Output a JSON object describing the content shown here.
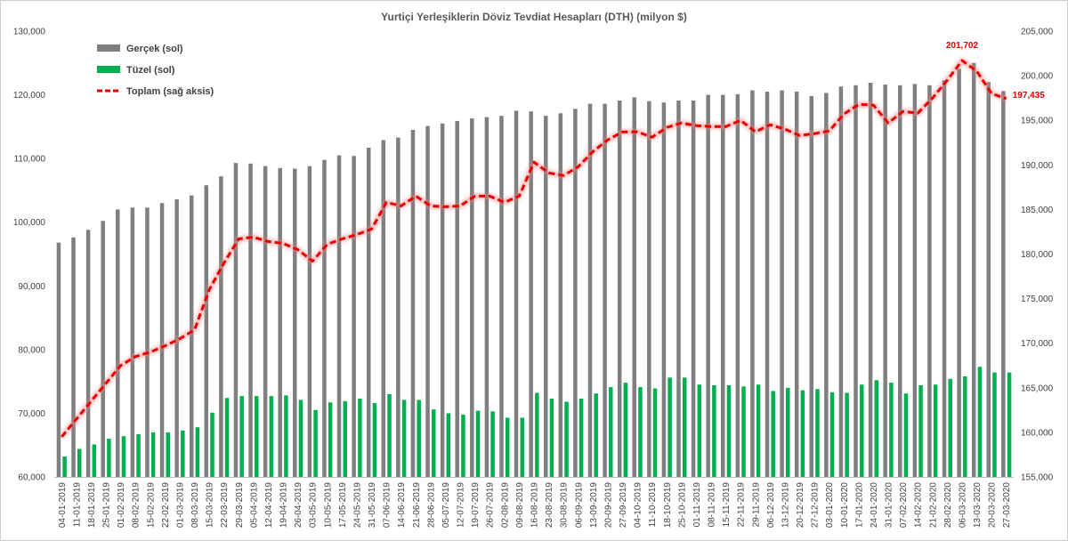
{
  "chart_data": {
    "type": "bar",
    "title": "Yurtiçi Yerleşiklerin Döviz Tevdiat Hesapları (DTH) (milyon $)",
    "left_axis": {
      "min": 60000,
      "max": 130000,
      "step": 10000,
      "ticks": [
        "60,000",
        "70,000",
        "80,000",
        "90,000",
        "100,000",
        "110,000",
        "120,000",
        "130,000"
      ]
    },
    "right_axis": {
      "min": 155000,
      "max": 205000,
      "step": 5000,
      "ticks": [
        "155,000",
        "160,000",
        "165,000",
        "170,000",
        "175,000",
        "180,000",
        "185,000",
        "190,000",
        "195,000",
        "200,000",
        "205,000"
      ]
    },
    "grid": false,
    "legend_position": "top-left",
    "categories": [
      "04-01-2019",
      "11-01-2019",
      "18-01-2019",
      "25-01-2019",
      "01-02-2019",
      "08-02-2019",
      "15-02-2019",
      "22-02-2019",
      "01-03-2019",
      "08-03-2019",
      "15-03-2019",
      "22-03-2019",
      "29-03-2019",
      "05-04-2019",
      "12-04-2019",
      "19-04-2019",
      "26-04-2019",
      "03-05-2019",
      "10-05-2019",
      "17-05-2019",
      "24-05-2019",
      "31-05-2019",
      "07-06-2019",
      "14-06-2019",
      "21-06-2019",
      "28-06-2019",
      "05-07-2019",
      "12-07-2019",
      "19-07-2019",
      "26-07-2019",
      "02-08-2019",
      "09-08-2019",
      "16-08-2019",
      "23-08-2019",
      "30-08-2019",
      "06-09-2019",
      "13-09-2019",
      "20-09-2019",
      "27-09-2019",
      "04-10-2019",
      "11-10-2019",
      "18-10-2019",
      "25-10-2019",
      "01-11-2019",
      "08-11-2019",
      "15-11-2019",
      "22-11-2019",
      "29-11-2019",
      "06-12-2019",
      "13-12-2019",
      "20-12-2019",
      "27-12-2019",
      "03-01-2020",
      "10-01-2020",
      "17-01-2020",
      "24-01-2020",
      "31-01-2020",
      "07-02-2020",
      "14-02-2020",
      "21-02-2020",
      "28-02-2020",
      "06-03-2020",
      "13-03-2020",
      "20-03-2020",
      "27-03-2020"
    ],
    "series": [
      {
        "name": "Gerçek (sol)",
        "type": "bar",
        "axis": "left",
        "color": "#7f7f7f",
        "values": [
          96800,
          97600,
          98800,
          100200,
          102000,
          102300,
          102300,
          103000,
          103600,
          104200,
          105800,
          107200,
          109300,
          109200,
          108800,
          108500,
          108400,
          108800,
          109800,
          110500,
          110400,
          111700,
          112900,
          113300,
          114500,
          115100,
          115500,
          115900,
          116300,
          116500,
          116700,
          117500,
          117400,
          116700,
          117100,
          117800,
          118600,
          118600,
          119100,
          119600,
          119000,
          118800,
          119100,
          119100,
          120000,
          120000,
          120100,
          120700,
          120500,
          120700,
          120500,
          119800,
          120300,
          121300,
          121500,
          121900,
          121600,
          121500,
          121700,
          121500,
          122300,
          124100,
          125000,
          122000,
          120600
        ]
      },
      {
        "name": "Tüzel (sol)",
        "type": "bar",
        "axis": "left",
        "color": "#00b050",
        "values": [
          63200,
          64400,
          65100,
          66000,
          66400,
          66700,
          67000,
          67000,
          67300,
          67800,
          70100,
          72400,
          72700,
          72700,
          72700,
          72800,
          72100,
          70500,
          71700,
          71900,
          72300,
          71600,
          73000,
          72100,
          72100,
          70600,
          70000,
          69800,
          70400,
          70300,
          69300,
          69300,
          73200,
          72300,
          71800,
          72300,
          73100,
          74100,
          74800,
          74100,
          73900,
          75600,
          75600,
          74500,
          74400,
          74400,
          74200,
          74500,
          73500,
          74000,
          73600,
          73800,
          73300,
          73200,
          74500,
          75200,
          74800,
          73100,
          74400,
          74500,
          75400,
          75800,
          77300,
          76400,
          76400
        ]
      },
      {
        "name": "Toplam (sağ aksis)",
        "type": "line",
        "axis": "right",
        "color": "#e60000",
        "dashed": true,
        "values": [
          159500,
          161500,
          163500,
          165500,
          167500,
          168500,
          169000,
          169700,
          170500,
          171500,
          176000,
          179000,
          181700,
          181900,
          181400,
          181200,
          180500,
          179200,
          181100,
          181700,
          182200,
          182800,
          185800,
          185400,
          186500,
          185400,
          185300,
          185400,
          186500,
          186500,
          185800,
          186500,
          190300,
          189100,
          188800,
          189800,
          191500,
          192800,
          193700,
          193700,
          193100,
          194200,
          194700,
          194400,
          194300,
          194300,
          195000,
          193700,
          194500,
          194000,
          193300,
          193500,
          193800,
          195700,
          196800,
          196700,
          194700,
          196000,
          195800,
          197500,
          199500,
          201702,
          200500,
          198000,
          197435
        ]
      }
    ],
    "annotations": [
      {
        "series": "Toplam (sağ aksis)",
        "category": "06-03-2020",
        "label": "201,702"
      },
      {
        "series": "Toplam (sağ aksis)",
        "category": "27-03-2020",
        "label": "197,435"
      }
    ]
  }
}
